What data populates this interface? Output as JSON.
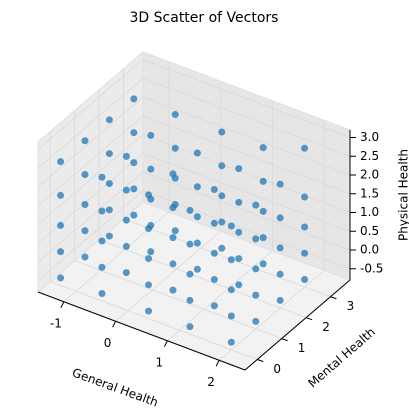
{
  "chart_data": {
    "type": "scatter3d",
    "title": "3D Scatter of Vectors",
    "xlabel": "General Health",
    "ylabel": "Mental Health",
    "zlabel": "Physical Health",
    "color": "#1f77b4",
    "grid": true,
    "xlim": [
      -1.5,
      2.5
    ],
    "ylim": [
      -0.5,
      3.8
    ],
    "zlim": [
      -0.8,
      3.2
    ],
    "xticks": [
      -1,
      0,
      1,
      2
    ],
    "yticks": [
      0,
      1,
      2,
      3
    ],
    "zticks": [
      -0.5,
      {
        "value": 0,
        "label": "0.0"
      },
      0.5,
      {
        "value": 1,
        "label": "1.0"
      },
      1.5,
      {
        "value": 2,
        "label": "2.0"
      },
      2.5,
      {
        "value": 3,
        "label": "3.0"
      }
    ],
    "x": [
      -1.3,
      -1.3,
      -1.3,
      -1.3,
      -1.3,
      -1.3,
      -1.3,
      -1.3,
      -1.3,
      -1.3,
      -1.3,
      -1.3,
      -1.3,
      -1.3,
      -1.3,
      -1.3,
      -1.3,
      -1.3,
      -1.3,
      -1.3,
      -0.5,
      -0.5,
      -0.5,
      -0.5,
      -0.5,
      -0.5,
      -0.5,
      -0.5,
      -0.5,
      -0.5,
      -0.5,
      -0.5,
      -0.5,
      -0.5,
      -0.5,
      -0.5,
      -0.5,
      -0.5,
      -0.5,
      -0.5,
      0.4,
      0.4,
      0.4,
      0.4,
      0.4,
      0.4,
      0.4,
      0.4,
      0.4,
      0.4,
      0.4,
      0.4,
      0.4,
      0.4,
      0.4,
      0.4,
      0.4,
      0.4,
      0.4,
      0.4,
      1.2,
      1.2,
      1.2,
      1.2,
      1.2,
      1.2,
      1.2,
      1.2,
      1.2,
      1.2,
      1.2,
      1.2,
      1.2,
      1.2,
      1.2,
      1.2,
      1.2,
      1.2,
      1.2,
      1.2,
      2.0,
      2.0,
      2.0,
      2.0,
      2.0,
      2.0,
      2.0,
      2.0,
      2.0,
      2.0,
      2.0,
      2.0,
      2.0,
      2.0,
      2.0,
      2.0,
      2.0,
      2.0,
      2.0,
      2.0
    ],
    "y": [
      0,
      0,
      0,
      0,
      0,
      1,
      1,
      1,
      1,
      1,
      2,
      2,
      2,
      2,
      2,
      3,
      3,
      3,
      3,
      3,
      0,
      0,
      0,
      0,
      0,
      1,
      1,
      1,
      1,
      1,
      2,
      2,
      2,
      2,
      2,
      3,
      3,
      3,
      3,
      3,
      0,
      0,
      0,
      0,
      0,
      1,
      1,
      1,
      1,
      1,
      2,
      2,
      2,
      2,
      2,
      3,
      3,
      3,
      3,
      3,
      0,
      0,
      0,
      0,
      0,
      1,
      1,
      1,
      1,
      1,
      2,
      2,
      2,
      2,
      2,
      3,
      3,
      3,
      3,
      3,
      0,
      0,
      0,
      0,
      0,
      1,
      1,
      1,
      1,
      1,
      2,
      2,
      2,
      2,
      2,
      3,
      3,
      3,
      3,
      3
    ],
    "z": [
      -0.6,
      0.1,
      0.8,
      1.6,
      2.5,
      -0.6,
      0.1,
      0.8,
      1.6,
      2.5,
      -0.6,
      0.1,
      0.8,
      1.6,
      2.5,
      -0.6,
      0.1,
      0.8,
      1.6,
      2.5,
      -0.6,
      0.1,
      0.8,
      1.6,
      2.5,
      -0.6,
      0.1,
      0.8,
      1.6,
      2.5,
      -0.6,
      0.1,
      0.8,
      1.6,
      2.5,
      -0.6,
      0.1,
      0.8,
      1.6,
      2.5,
      -0.6,
      0.1,
      0.8,
      1.6,
      2.5,
      -0.6,
      0.1,
      0.8,
      1.6,
      2.5,
      -0.6,
      0.1,
      0.8,
      1.6,
      2.5,
      -0.6,
      0.1,
      0.8,
      1.6,
      2.5,
      -0.6,
      0.1,
      0.8,
      1.6,
      2.5,
      -0.6,
      0.1,
      0.8,
      1.6,
      2.5,
      -0.6,
      0.1,
      0.8,
      1.6,
      2.5,
      -0.6,
      0.1,
      0.8,
      1.6,
      2.5,
      -0.6,
      0.1,
      0.8,
      1.6,
      2.5,
      -0.6,
      0.1,
      0.8,
      1.6,
      2.5,
      -0.6,
      0.1,
      0.8,
      1.6,
      2.5,
      -0.6,
      0.1,
      0.8,
      1.6,
      2.9
    ]
  }
}
